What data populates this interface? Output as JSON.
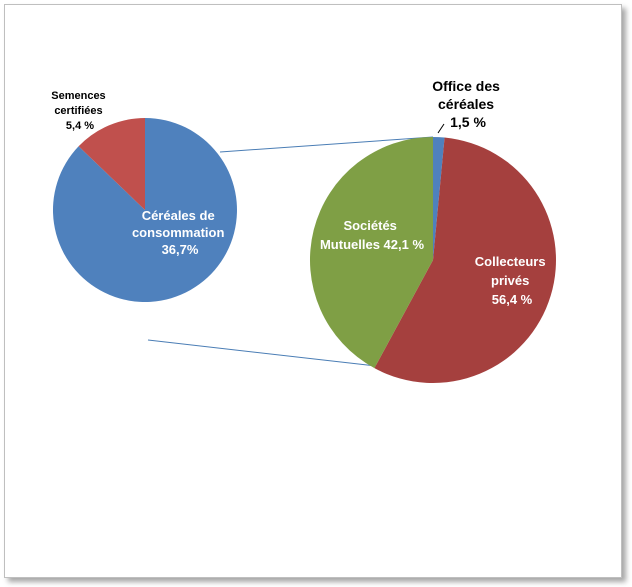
{
  "chart_data": {
    "type": "pie-of-pie",
    "main_pie": {
      "slices": [
        {
          "name": "Céréales de consommation",
          "value": 36.7,
          "label_lines": [
            "Céréales de",
            "consommation",
            "36,7%"
          ],
          "color": "#4f81bd"
        },
        {
          "name": "Semences certifiées",
          "value": 5.4,
          "label_lines": [
            "Semences",
            "certifiées",
            "5,4 %"
          ],
          "color": "#c0504d"
        }
      ]
    },
    "secondary_pie": {
      "slices": [
        {
          "name": "Office des céréales",
          "value": 1.5,
          "label_lines": [
            "Office des",
            "céréales",
            "1,5 %"
          ],
          "color": "#4f81bd"
        },
        {
          "name": "Collecteurs privés",
          "value": 56.4,
          "label_lines": [
            "Collecteurs",
            "privés",
            "56,4 %"
          ],
          "color": "#a5403e"
        },
        {
          "name": "Sociétés Mutuelles",
          "value": 42.1,
          "label_lines": [
            "Sociétés",
            "Mutuelles 42,1 %"
          ],
          "color": "#7f9f45"
        }
      ]
    },
    "connector_color": "#4a7db5"
  }
}
